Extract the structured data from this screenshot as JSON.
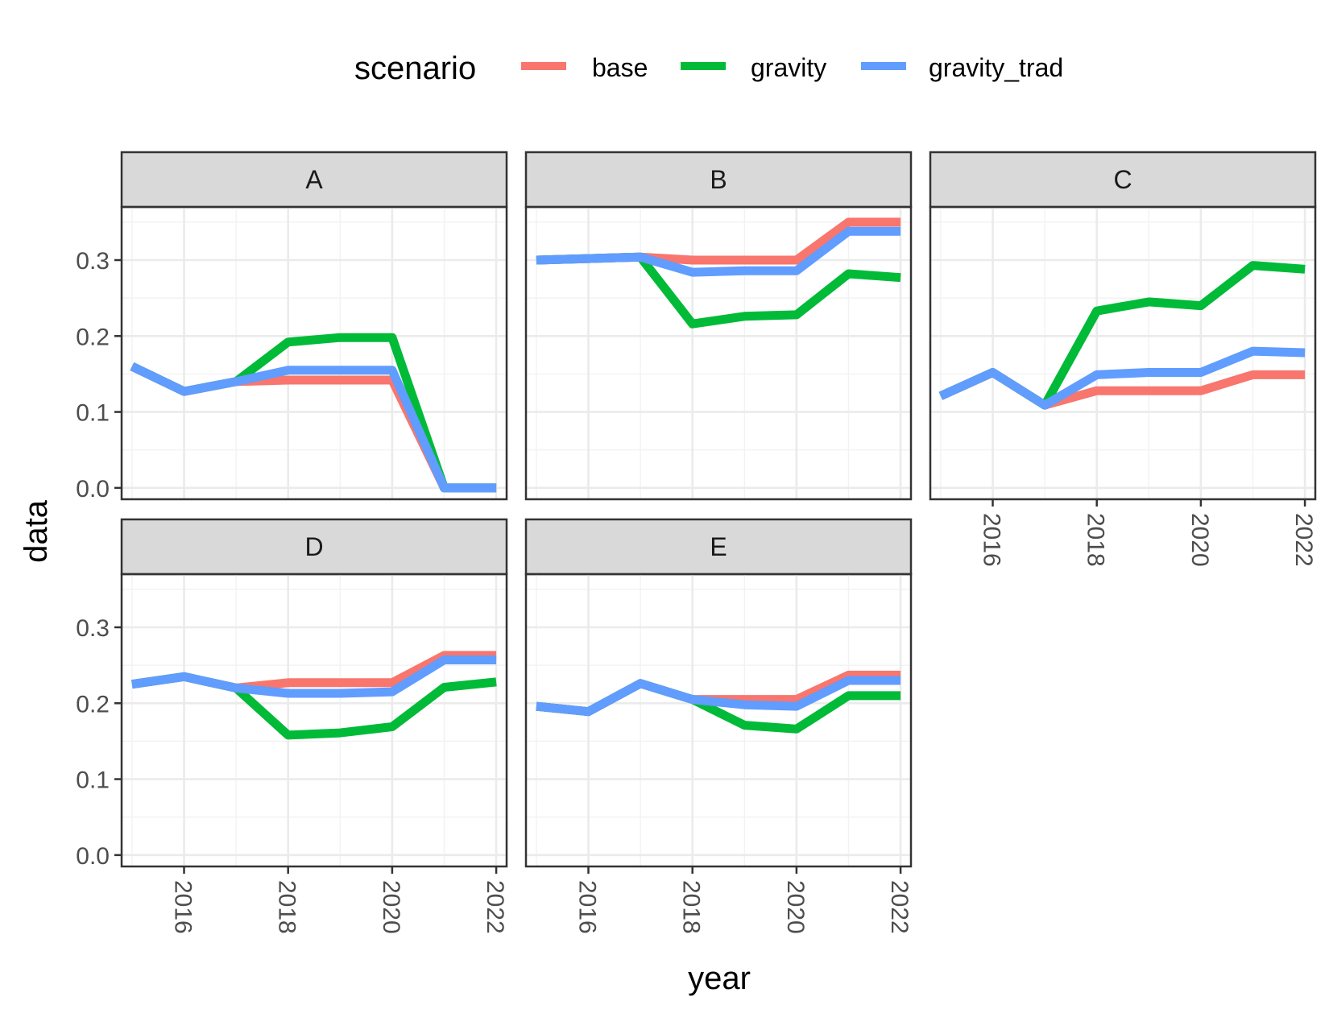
{
  "chart_data": {
    "type": "line",
    "facet_by": "panel",
    "facet_layout": {
      "ncol": 3,
      "nrow": 2
    },
    "xlabel": "year",
    "ylabel": "data",
    "legend": {
      "title": "scenario",
      "position": "top"
    },
    "x": [
      2015,
      2016,
      2017,
      2018,
      2019,
      2020,
      2021,
      2022
    ],
    "xlim": [
      2014.8,
      2022.2
    ],
    "ylim": [
      -0.015,
      0.37
    ],
    "x_ticks": [
      2016,
      2018,
      2020,
      2022
    ],
    "y_ticks": [
      0.0,
      0.1,
      0.2,
      0.3
    ],
    "y_tick_labels": [
      "0.0",
      "0.1",
      "0.2",
      "0.3"
    ],
    "grid": true,
    "series_names": [
      "base",
      "gravity",
      "gravity_trad"
    ],
    "series_colors": [
      "#F8766D",
      "#00BA38",
      "#619CFF"
    ],
    "panels": [
      {
        "label": "A",
        "series": [
          {
            "name": "base",
            "values": [
              0.16,
              0.127,
              0.14,
              0.142,
              0.142,
              0.142,
              0.0,
              0.0
            ]
          },
          {
            "name": "gravity",
            "values": [
              0.16,
              0.127,
              0.14,
              0.192,
              0.198,
              0.198,
              0.0,
              0.0
            ]
          },
          {
            "name": "gravity_trad",
            "values": [
              0.16,
              0.127,
              0.14,
              0.155,
              0.155,
              0.155,
              0.0,
              0.0
            ]
          }
        ]
      },
      {
        "label": "B",
        "series": [
          {
            "name": "base",
            "values": [
              0.3,
              0.302,
              0.304,
              0.3,
              0.3,
              0.3,
              0.35,
              0.35
            ]
          },
          {
            "name": "gravity",
            "values": [
              0.3,
              0.302,
              0.304,
              0.216,
              0.226,
              0.228,
              0.282,
              0.277
            ]
          },
          {
            "name": "gravity_trad",
            "values": [
              0.3,
              0.302,
              0.304,
              0.284,
              0.286,
              0.286,
              0.338,
              0.338
            ]
          }
        ]
      },
      {
        "label": "C",
        "series": [
          {
            "name": "base",
            "values": [
              0.121,
              0.152,
              0.109,
              0.128,
              0.128,
              0.128,
              0.149,
              0.149
            ]
          },
          {
            "name": "gravity",
            "values": [
              0.121,
              0.152,
              0.109,
              0.233,
              0.245,
              0.24,
              0.293,
              0.288
            ]
          },
          {
            "name": "gravity_trad",
            "values": [
              0.121,
              0.152,
              0.109,
              0.149,
              0.152,
              0.152,
              0.18,
              0.178
            ]
          }
        ]
      },
      {
        "label": "D",
        "series": [
          {
            "name": "base",
            "values": [
              0.225,
              0.235,
              0.22,
              0.227,
              0.227,
              0.227,
              0.263,
              0.263
            ]
          },
          {
            "name": "gravity",
            "values": [
              0.225,
              0.235,
              0.22,
              0.158,
              0.161,
              0.169,
              0.221,
              0.228
            ]
          },
          {
            "name": "gravity_trad",
            "values": [
              0.225,
              0.235,
              0.22,
              0.213,
              0.213,
              0.215,
              0.257,
              0.257
            ]
          }
        ]
      },
      {
        "label": "E",
        "series": [
          {
            "name": "base",
            "values": [
              0.196,
              0.189,
              0.226,
              0.205,
              0.205,
              0.205,
              0.237,
              0.237
            ]
          },
          {
            "name": "gravity",
            "values": [
              0.196,
              0.189,
              0.226,
              0.205,
              0.171,
              0.166,
              0.21,
              0.21
            ]
          },
          {
            "name": "gravity_trad",
            "values": [
              0.196,
              0.189,
              0.226,
              0.205,
              0.198,
              0.196,
              0.23,
              0.23
            ]
          }
        ]
      }
    ]
  }
}
